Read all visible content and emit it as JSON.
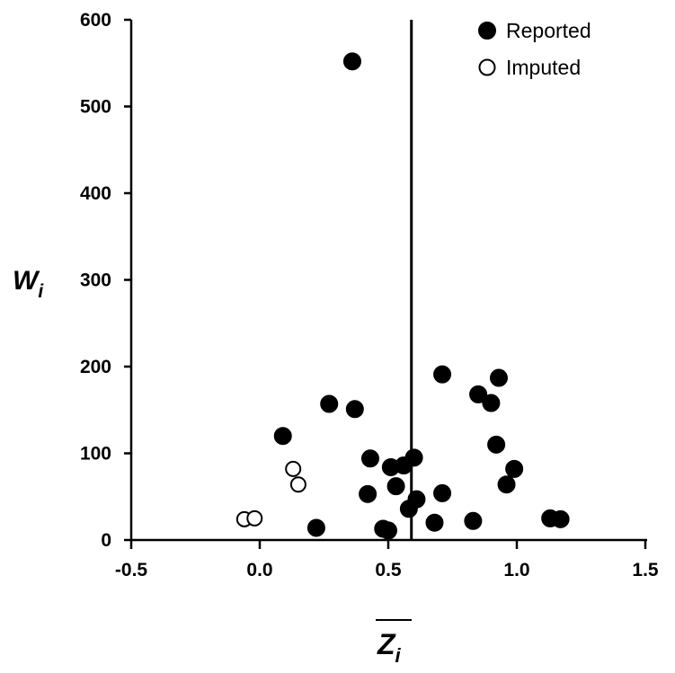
{
  "chart_data": {
    "type": "scatter",
    "title": "",
    "xlabel": "Z",
    "xlabel_sub": "i",
    "ylabel": "W",
    "ylabel_sub": "i",
    "xlim": [
      -0.5,
      1.5
    ],
    "ylim": [
      0,
      600
    ],
    "xticks": [
      "-0.5",
      "0.0",
      "0.5",
      "1.0",
      "1.5"
    ],
    "yticks": [
      "0",
      "100",
      "200",
      "300",
      "400",
      "500",
      "600"
    ],
    "grid": false,
    "legend_position": "top-right",
    "reference_line_x": 0.59,
    "series": [
      {
        "name": "Reported",
        "marker": "filled-circle",
        "color": "#000000",
        "points": [
          [
            0.36,
            552
          ],
          [
            0.27,
            157
          ],
          [
            0.37,
            151
          ],
          [
            0.09,
            120
          ],
          [
            0.71,
            191
          ],
          [
            0.93,
            187
          ],
          [
            0.85,
            168
          ],
          [
            0.9,
            158
          ],
          [
            0.92,
            110
          ],
          [
            0.99,
            82
          ],
          [
            0.96,
            64
          ],
          [
            0.43,
            94
          ],
          [
            0.51,
            84
          ],
          [
            0.56,
            86
          ],
          [
            0.6,
            95
          ],
          [
            0.53,
            62
          ],
          [
            0.42,
            53
          ],
          [
            0.61,
            47
          ],
          [
            0.71,
            54
          ],
          [
            0.58,
            36
          ],
          [
            0.68,
            20
          ],
          [
            0.83,
            22
          ],
          [
            0.22,
            14
          ],
          [
            0.48,
            13
          ],
          [
            0.5,
            11
          ],
          [
            1.13,
            25
          ],
          [
            1.17,
            24
          ]
        ]
      },
      {
        "name": "Imputed",
        "marker": "open-circle",
        "color": "#000000",
        "points": [
          [
            0.13,
            82
          ],
          [
            0.15,
            64
          ],
          [
            -0.06,
            24
          ],
          [
            -0.02,
            25
          ]
        ]
      }
    ]
  }
}
